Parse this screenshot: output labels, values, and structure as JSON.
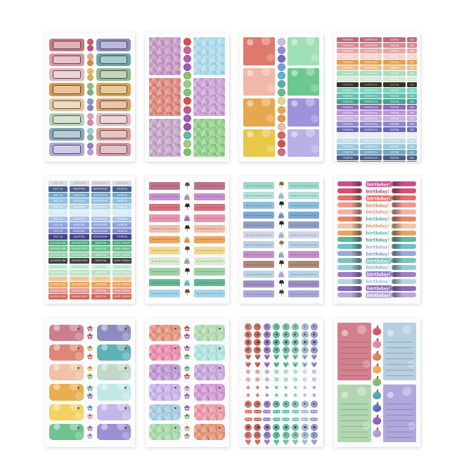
{
  "page": {
    "background": "#ffffff"
  },
  "sheets": [
    {
      "name": "rainbow-frame-labels-sheet",
      "type": "framed_labels",
      "rows": [
        {
          "left": "#c8797f",
          "right": "#8b89c1",
          "dots": [
            "#d05b5b",
            "#bf4f88"
          ]
        },
        {
          "left": "#d898a3",
          "right": "#6aa7ac",
          "dots": [
            "#e2a987",
            "#d8894e"
          ]
        },
        {
          "left": "#e2b6bb",
          "right": "#92ba8b",
          "dots": [
            "#e5bd5e",
            "#ddb14e"
          ]
        },
        {
          "left": "#d8994e",
          "right": "#d8a44e",
          "dots": [
            "#8cbd7d",
            "#7db270"
          ]
        },
        {
          "left": "#e3c495",
          "right": "#daa069",
          "dots": [
            "#7d9dd2",
            "#8a84c2"
          ]
        },
        {
          "left": "#b6d0b2",
          "right": "#e2b8be",
          "dots": [
            "#dd9eb6",
            "#d888a6"
          ]
        },
        {
          "left": "#82a8b6",
          "right": "#db9e93",
          "dots": [
            "#9dced9",
            "#7db6ae"
          ]
        },
        {
          "left": "#aea8d4",
          "right": "#d696a6",
          "dots": [
            "#987dc2",
            "#b69dd7"
          ]
        }
      ]
    },
    {
      "name": "mosaic-squares-sheet",
      "type": "squares",
      "texture": "mosaic",
      "left": [
        "#c18fc0",
        "#d87d71",
        "#bd9dc0"
      ],
      "right": [
        "#a4d6e8",
        "#c598cf",
        "#8aca82"
      ],
      "circles": [
        "#d2544b",
        "#cb6797",
        "#ac61b8",
        "#a157c0",
        "#8bc567",
        "#95cf86",
        "#83c375",
        "#d2544b",
        "#c75984",
        "#a75bbd",
        "#9953b0",
        "#59bea9",
        "#9fcf7b",
        "#77c56d"
      ]
    },
    {
      "name": "pastel-squares-sheet",
      "type": "squares",
      "texture": "soft",
      "left": [
        "#df796d",
        "#f1b7a7",
        "#e7a74e",
        "#e7c847"
      ],
      "right": [
        "#9edfb4",
        "#6bc88e",
        "#9e93db",
        "#b7b1e7"
      ],
      "circles": [
        "#c7bfeb",
        "#998bd7",
        "#796bc3",
        "#7e9ed7",
        "#5eb7c3",
        "#53b1ac",
        "#67be8b",
        "#e7d889",
        "#e7a74e",
        "#e7944e",
        "#f1be9e",
        "#d8695e",
        "#d2544b",
        "#d2698b"
      ]
    },
    {
      "name": "weekly-words-sheet",
      "type": "word_strips",
      "words": [
        "meeting",
        "conference",
        "testing",
        "tag"
      ],
      "rows": [
        {
          "c": "#bf6780"
        },
        {
          "c": "#d88a91"
        },
        {
          "c": "#e7a7a7"
        },
        {
          "c": "#f1d3d3"
        },
        {
          "c": "#e79f53"
        },
        {
          "c": "#e7c389"
        },
        {
          "c": "#a7dbbf"
        },
        {
          "c": "#d3e9d7"
        },
        {
          "c": "#3a3028",
          "t": "#d3b769"
        },
        {
          "c": "#7ed3bf"
        },
        {
          "c": "#5ec3ac"
        },
        {
          "c": "#3ea793"
        },
        {
          "c": "#8e69b7"
        },
        {
          "c": "#b797d7"
        },
        {
          "c": "#c3b1df"
        },
        {
          "c": "#8e89cf"
        },
        {
          "c": "#6e69b7"
        },
        {
          "c": "#e7ebf3"
        },
        {
          "c": "#c7dbe9"
        },
        {
          "c": "#9ec7db"
        },
        {
          "c": "#6ea7c3"
        },
        {
          "c": "#4e5e87"
        },
        {
          "c": "#897e3e",
          "t": "#e7d89a"
        }
      ]
    },
    {
      "name": "schedule-words-sheet",
      "type": "word_grid",
      "words_top": [
        "lock up",
        "assembly",
        "observation",
        "meeting"
      ],
      "words_bottom": [
        "personal day",
        "development",
        "planning",
        "early release"
      ],
      "rows": [
        {
          "c": "#dcdce2",
          "s": "t",
          "t": "#9a9aa2"
        },
        {
          "c": "#4a5f88",
          "s": "t"
        },
        {
          "c": "#6fa8c8",
          "s": "t"
        },
        {
          "c": "#8fc0dc",
          "s": "t"
        },
        {
          "c": "#b5d6ea",
          "s": "t"
        },
        {
          "c": "#dcebf4",
          "s": "t"
        },
        {
          "c": "#a5c4e8",
          "s": "t"
        },
        {
          "c": "#8fa5dc",
          "s": "t"
        },
        {
          "c": "#7e8cd0",
          "s": "t"
        },
        {
          "c": "#474288",
          "s": "t"
        },
        {
          "c": "#4aa67f",
          "s": "b"
        },
        {
          "c": "#6fbf92",
          "s": "b"
        },
        {
          "c": "#92d0ab",
          "s": "b"
        },
        {
          "c": "#3f3f42",
          "s": "b"
        },
        {
          "c": "#d5ecdf",
          "s": "b",
          "t": "#86bf9e"
        },
        {
          "c": "#b9e2c9",
          "s": "b"
        },
        {
          "c": "#f0d0a5",
          "s": "b",
          "t": "#dca05f"
        },
        {
          "c": "#e8a55f",
          "s": "b"
        },
        {
          "c": "#e2968a",
          "s": "b"
        },
        {
          "c": "#cc6a62",
          "s": "b"
        }
      ]
    },
    {
      "name": "warm-clip-strips-sheet",
      "type": "clip_strips",
      "rows": [
        {
          "c": "#bd7287",
          "icon": "pin",
          "ic": "#6a4a38"
        },
        {
          "c": "#c78fd3",
          "icon": "clip",
          "ic": "#9a9aa5"
        },
        {
          "c": "#d3757e",
          "icon": "pin",
          "ic": "#28282a"
        },
        {
          "c": "#e794b1",
          "icon": "clip",
          "ic": "#9a6ab8"
        },
        {
          "c": "#f1bfa7",
          "icon": "pin",
          "ic": "#3a2a20"
        },
        {
          "c": "#eda45e",
          "icon": "clip",
          "ic": "#d8933e"
        },
        {
          "c": "#f1d88b",
          "icon": "pin",
          "ic": "#5a3a28"
        },
        {
          "c": "#d7ebcf",
          "icon": "clip",
          "ic": "#9aa2a9"
        },
        {
          "c": "#9ed1a4",
          "icon": "pin",
          "ic": "#382a28"
        },
        {
          "c": "#61b794",
          "icon": "clip",
          "ic": "#5eb7a7"
        },
        {
          "c": "#a4d3e7",
          "icon": "pin",
          "ic": "#6a4a28"
        }
      ]
    },
    {
      "name": "cool-clip-strips-sheet",
      "type": "clip_strips",
      "rows": [
        {
          "c": "#9ed7cb",
          "icon": "pin",
          "ic": "#8a6a38"
        },
        {
          "c": "#b1dfd7",
          "icon": "clip",
          "ic": "#8ec3b7"
        },
        {
          "c": "#8ebfdb",
          "icon": "pin",
          "ic": "#28282a"
        },
        {
          "c": "#7ea7d3",
          "icon": "clip",
          "ic": "#6e8ec3"
        },
        {
          "c": "#8e9ec7",
          "icon": "pin",
          "ic": "#28282a"
        },
        {
          "c": "#cfd3eb",
          "icon": "clip",
          "ic": "#9eb1d7"
        },
        {
          "c": "#b7cfe7",
          "icon": "pin",
          "ic": "#8a7a38"
        },
        {
          "c": "#c78ecf",
          "icon": "clip",
          "ic": "#8ea7d7"
        },
        {
          "c": "#af8777",
          "icon": "pin",
          "ic": "#3a2a20"
        },
        {
          "c": "#b7d3e7",
          "icon": "clip",
          "ic": "#af9ecf"
        },
        {
          "c": "#9e8ec7",
          "icon": "pin",
          "ic": "#28282a"
        },
        {
          "c": "#a7a9d7",
          "icon": "pin",
          "ic": "#4a3a28"
        }
      ]
    },
    {
      "name": "birthday-labels-sheet",
      "type": "birthday",
      "word": "birthday!",
      "rows": [
        {
          "c": "#cb4f8e",
          "hl": true
        },
        {
          "c": "#d84f69",
          "t": "#b73a59"
        },
        {
          "c": "#e76f69",
          "hl": true
        },
        {
          "c": "#f19989",
          "t": "#d87a5e"
        },
        {
          "c": "#f1b1a9",
          "t": "#e78a79"
        },
        {
          "c": "#e78969",
          "t": "#4fa79e"
        },
        {
          "c": "#f1c3a7",
          "t": "#d8945e"
        },
        {
          "c": "#e7a45e",
          "t": "#53b1ac"
        },
        {
          "c": "#5eb79f",
          "t": "#3e9e89"
        },
        {
          "c": "#6ec3c3",
          "t": "#9e9ed8"
        },
        {
          "c": "#9ea7db",
          "t": "#7e89cb"
        },
        {
          "c": "#7ec3b7",
          "hl": true
        },
        {
          "c": "#8ecfdb",
          "t": "#69b1c3"
        },
        {
          "c": "#9e7ec7",
          "hl": true
        },
        {
          "c": "#b1d7e7",
          "t": "#89bfd3"
        },
        {
          "c": "#8e69b7",
          "hl": true
        },
        {
          "c": "#b7a9dd",
          "hl": true
        }
      ]
    },
    {
      "name": "solid-tags-sheet",
      "type": "tags",
      "texture": "soft",
      "rows": [
        {
          "l": "#cb7e8e",
          "r": "#8e8bc3"
        },
        {
          "l": "#df8777",
          "r": "#5eb1b7"
        },
        {
          "l": "#f1c3a4",
          "r": "#c1d7cb"
        },
        {
          "l": "#e7af4e",
          "r": "#c1e7e7"
        },
        {
          "l": "#f1d35e",
          "r": "#c3b7e7"
        },
        {
          "l": "#6ec38e",
          "r": "#9e8ed3"
        }
      ],
      "flowers": [
        "#d35f7e",
        "#cb4f69",
        "#e79f5e",
        "#d37569",
        "#e7c34e",
        "#7ebf69",
        "#4fb7a7",
        "#8e6ec3",
        "#5eb7b1",
        "#e78fa7",
        "#9e7ecf",
        "#b7a7df"
      ]
    },
    {
      "name": "textured-tags-sheet",
      "type": "tags",
      "texture": "mosaic",
      "rows": [
        {
          "l": "#df8970",
          "r": "#a7d7a7"
        },
        {
          "l": "#e77fa7",
          "r": "#a7dfdb"
        },
        {
          "l": "#b78ecf",
          "r": "#bf9fd7"
        },
        {
          "l": "#c3a9e7",
          "r": "#cb8ecf"
        },
        {
          "l": "#9ec7db",
          "r": "#e78f9e"
        },
        {
          "l": "#9ed39f",
          "r": "#df8969"
        }
      ],
      "flowers": [
        "#d3544e",
        "#9e5ec3",
        "#a767c7",
        "#5eb769",
        "#69bf71",
        "#d3545e",
        "#e77e9e",
        "#9e6ec7",
        "#8e5eb7",
        "#7ebf69",
        "#c3b17e",
        "#b7a769"
      ]
    },
    {
      "name": "mini-icons-sheet",
      "type": "icon_grid",
      "cols": [
        "#d3756e",
        "#cb6a61",
        "#9e7ec7",
        "#5ebf9f",
        "#6ec3a7",
        "#7ec7af",
        "#a5bfd3",
        "#9a9ad7"
      ],
      "rows": [
        {
          "shape": "circle",
          "g": "+"
        },
        {
          "shape": "circle",
          "g": "♟"
        },
        {
          "shape": "circle",
          "g": "▣"
        },
        {
          "shape": "circle",
          "g": "⊞"
        },
        {
          "shape": "heart",
          "g": "✔"
        },
        {
          "shape": "heart",
          "g": "✔"
        },
        {
          "shape": "flake",
          "g": "✻"
        },
        {
          "shape": "flake",
          "g": "✼"
        },
        {
          "shape": "star",
          "g": "★"
        },
        {
          "shape": "star",
          "g": "★"
        },
        {
          "shape": "circle",
          "g": "★"
        },
        {
          "shape": "pill",
          "g": ""
        },
        {
          "shape": "pill",
          "g": ""
        },
        {
          "shape": "circle",
          "g": "▣"
        },
        {
          "shape": "circle",
          "g": "⊙"
        },
        {
          "shape": "heart",
          "g": ""
        }
      ]
    },
    {
      "name": "notepad-list-sheet",
      "type": "notepads",
      "left": [
        "#d3808e",
        "#b1d7b1"
      ],
      "right": [
        "#b5cfde",
        "#b1a7dd"
      ],
      "apples": [
        "#d3546a",
        "#e78a9f",
        "#e7824e",
        "#e7b34e",
        "#7ebf6e",
        "#4fa7b7",
        "#5e6ec3",
        "#8e5ec3",
        "#b19edb"
      ]
    }
  ]
}
